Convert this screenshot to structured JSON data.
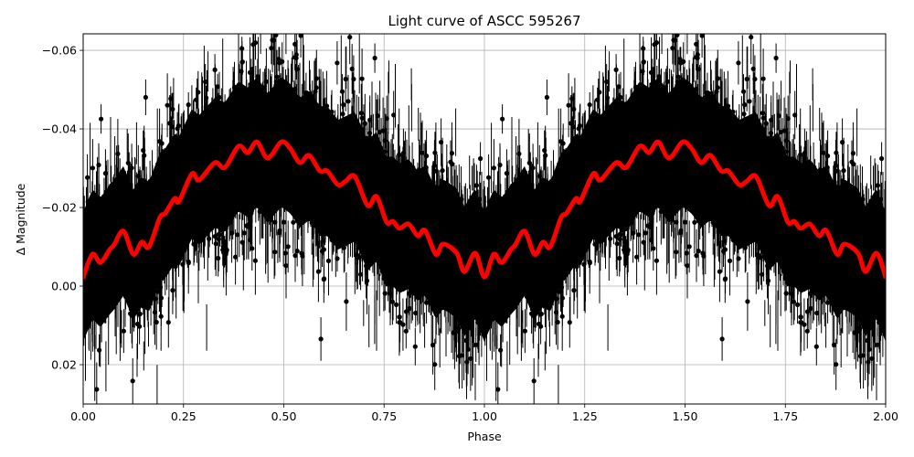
{
  "chart_data": {
    "type": "scatter",
    "title": "Light curve of ASCC 595267",
    "xlabel": "Phase",
    "ylabel": "Δ Magnitude",
    "xlim": [
      0.0,
      2.0
    ],
    "ylim": [
      0.03,
      -0.0642
    ],
    "y_inverted": true,
    "grid": true,
    "legend": null,
    "xticks": [
      0.0,
      0.25,
      0.5,
      0.75,
      1.0,
      1.25,
      1.5,
      1.75,
      2.0
    ],
    "xtick_labels": [
      "0.00",
      "0.25",
      "0.50",
      "0.75",
      "1.00",
      "1.25",
      "1.50",
      "1.75",
      "2.00"
    ],
    "yticks": [
      -0.06,
      -0.04,
      -0.02,
      0.0,
      0.02
    ],
    "ytick_labels": [
      "−0.06",
      "−0.04",
      "−0.02",
      "0.00",
      "0.02"
    ],
    "series": [
      {
        "name": "observations",
        "kind": "errorbar-scatter",
        "color": "#000000",
        "description": "Thousands of phase-folded photometric points with error bars; dense cloud roughly spanning -0.06 to +0.03 mag, repeated for phase 0-1 and 1-2",
        "center_trend": "follows model curve",
        "scatter_sigma_approx": 0.012
      },
      {
        "name": "binned model",
        "kind": "line",
        "color": "#ff0000",
        "linewidth": 4,
        "x": [
          0.0,
          0.023,
          0.043,
          0.066,
          0.077,
          0.1,
          0.125,
          0.146,
          0.164,
          0.191,
          0.205,
          0.228,
          0.239,
          0.271,
          0.289,
          0.328,
          0.353,
          0.387,
          0.41,
          0.433,
          0.46,
          0.494,
          0.517,
          0.54,
          0.563,
          0.59,
          0.608,
          0.635,
          0.654,
          0.677,
          0.709,
          0.731,
          0.756,
          0.772,
          0.788,
          0.811,
          0.834,
          0.852,
          0.879,
          0.897,
          0.931,
          0.95,
          0.977,
          1.0
        ],
        "y": [
          -0.0023,
          -0.0081,
          -0.006,
          -0.0093,
          -0.0105,
          -0.014,
          -0.0081,
          -0.0112,
          -0.01,
          -0.0174,
          -0.0186,
          -0.0223,
          -0.0216,
          -0.0286,
          -0.027,
          -0.0314,
          -0.0302,
          -0.0356,
          -0.034,
          -0.0367,
          -0.0326,
          -0.0367,
          -0.0349,
          -0.0314,
          -0.0333,
          -0.0293,
          -0.0293,
          -0.0258,
          -0.0267,
          -0.0279,
          -0.0205,
          -0.0228,
          -0.0163,
          -0.0165,
          -0.0147,
          -0.0158,
          -0.0128,
          -0.0142,
          -0.0081,
          -0.0107,
          -0.0084,
          -0.0037,
          -0.0084,
          -0.0023
        ],
        "repeat_period": 1.0
      }
    ]
  },
  "colors": {
    "background": "#ffffff",
    "grid": "#b0b0b0",
    "data": "#000000",
    "model": "#ff0000"
  }
}
